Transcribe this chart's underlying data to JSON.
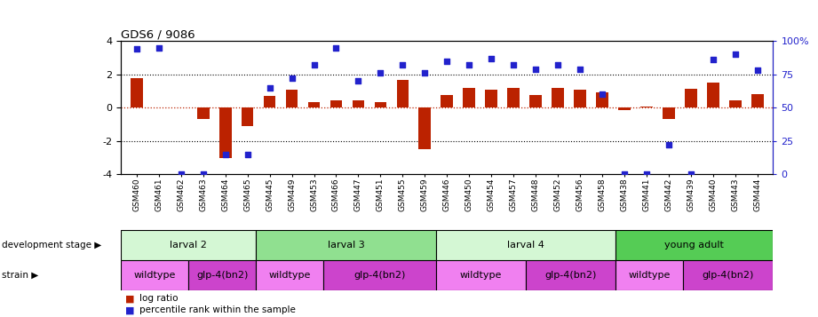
{
  "title": "GDS6 / 9086",
  "samples": [
    "GSM460",
    "GSM461",
    "GSM462",
    "GSM463",
    "GSM464",
    "GSM465",
    "GSM445",
    "GSM449",
    "GSM453",
    "GSM466",
    "GSM447",
    "GSM451",
    "GSM455",
    "GSM459",
    "GSM446",
    "GSM450",
    "GSM454",
    "GSM457",
    "GSM448",
    "GSM452",
    "GSM456",
    "GSM458",
    "GSM438",
    "GSM441",
    "GSM442",
    "GSM439",
    "GSM440",
    "GSM443",
    "GSM444"
  ],
  "log_ratio": [
    1.8,
    0.0,
    0.0,
    -0.7,
    -3.0,
    -1.1,
    0.7,
    1.1,
    0.35,
    0.45,
    0.45,
    0.35,
    1.65,
    -2.5,
    0.75,
    1.2,
    1.1,
    1.2,
    0.75,
    1.2,
    1.1,
    0.95,
    -0.15,
    0.1,
    -0.65,
    1.15,
    1.5,
    0.45,
    0.8
  ],
  "percentile": [
    94,
    95,
    0,
    0,
    15,
    15,
    65,
    72,
    82,
    95,
    70,
    76,
    82,
    76,
    85,
    82,
    87,
    82,
    79,
    82,
    79,
    60,
    0,
    0,
    22,
    0,
    86,
    90,
    78
  ],
  "dev_stages": [
    {
      "label": "larval 2",
      "start": 0,
      "end": 6,
      "color": "#d4f7d4"
    },
    {
      "label": "larval 3",
      "start": 6,
      "end": 14,
      "color": "#90e090"
    },
    {
      "label": "larval 4",
      "start": 14,
      "end": 22,
      "color": "#d4f7d4"
    },
    {
      "label": "young adult",
      "start": 22,
      "end": 29,
      "color": "#55cc55"
    }
  ],
  "strains": [
    {
      "label": "wildtype",
      "start": 0,
      "end": 3,
      "color": "#f080f0"
    },
    {
      "label": "glp-4(bn2)",
      "start": 3,
      "end": 6,
      "color": "#cc44cc"
    },
    {
      "label": "wildtype",
      "start": 6,
      "end": 9,
      "color": "#f080f0"
    },
    {
      "label": "glp-4(bn2)",
      "start": 9,
      "end": 14,
      "color": "#cc44cc"
    },
    {
      "label": "wildtype",
      "start": 14,
      "end": 18,
      "color": "#f080f0"
    },
    {
      "label": "glp-4(bn2)",
      "start": 18,
      "end": 22,
      "color": "#cc44cc"
    },
    {
      "label": "wildtype",
      "start": 22,
      "end": 25,
      "color": "#f080f0"
    },
    {
      "label": "glp-4(bn2)",
      "start": 25,
      "end": 29,
      "color": "#cc44cc"
    }
  ],
  "bar_color": "#bb2200",
  "dot_color": "#2222cc",
  "ylim_left": [
    -4,
    4
  ],
  "ylim_right": [
    0,
    100
  ],
  "yticks_left": [
    -4,
    -2,
    0,
    2,
    4
  ],
  "yticks_right": [
    0,
    25,
    50,
    75,
    100
  ],
  "ytick_labels_right": [
    "0",
    "25",
    "50",
    "75",
    "100%"
  ],
  "dotted_lines": [
    -2,
    2
  ],
  "background_color": "#ffffff"
}
